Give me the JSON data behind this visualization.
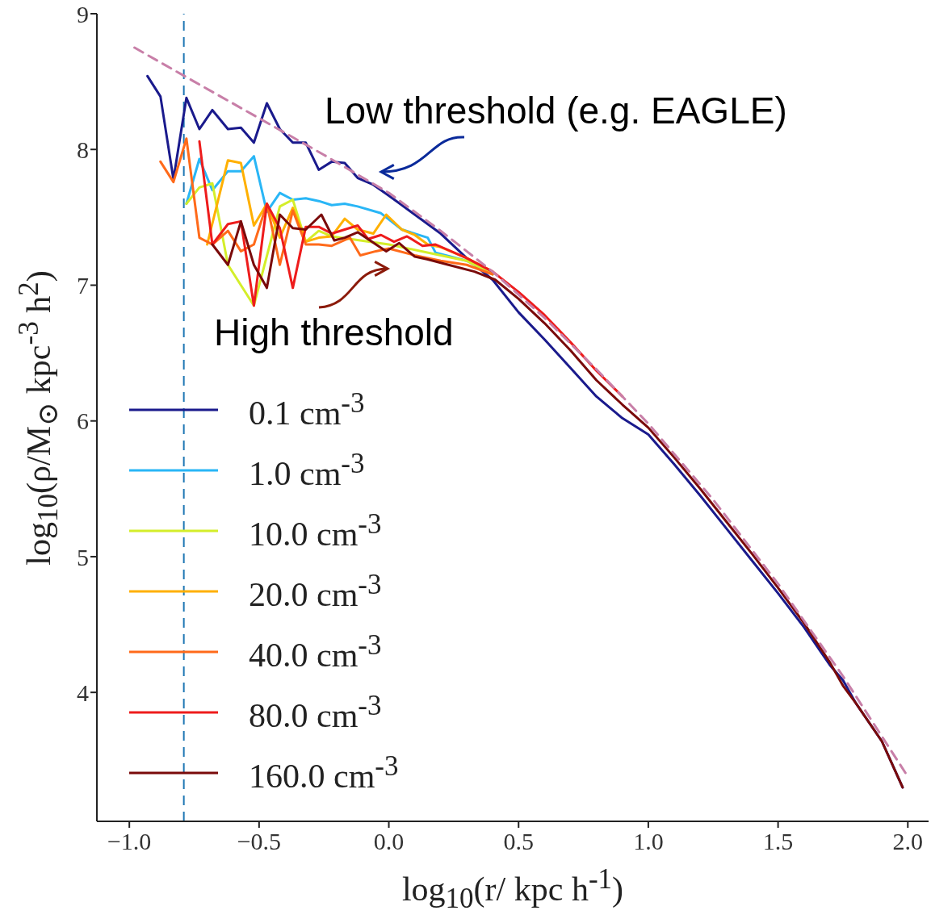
{
  "chart_data": {
    "type": "line",
    "xlabel": "log$_{10}$(r/ kpc h$^{-1}$)",
    "ylabel": "log$_{10}$(ρ/M$_{⊙}$ kpc$^{-3}$ h$^{2}$)",
    "xlim": [
      -1.125,
      2.08
    ],
    "ylim": [
      3.05,
      9
    ],
    "xticks": [
      {
        "value": -1,
        "label": "−1.0"
      },
      {
        "value": -0.5,
        "label": "−0.5"
      },
      {
        "value": 0,
        "label": "0.0"
      },
      {
        "value": 0.5,
        "label": "0.5"
      },
      {
        "value": 1,
        "label": "1.0"
      },
      {
        "value": 1.5,
        "label": "1.5"
      },
      {
        "value": 2,
        "label": "2.0"
      }
    ],
    "yticks": [
      4,
      5,
      6,
      7,
      8,
      9
    ],
    "grid": false,
    "legend": "bottom left",
    "line_style": "solid",
    "ref_lines": [
      {
        "axis": "x",
        "value": -0.79,
        "color": "#1f77b4",
        "line_style": "dashed"
      }
    ],
    "annotations": [
      "Low threshold (e.g. EAGLE)",
      "High threshold"
    ],
    "series": [
      {
        "name": "0.1 cm$^{-3}$",
        "color": "#1a1a8c",
        "x": [
          -0.93,
          -0.88,
          -0.83,
          -0.78,
          -0.73,
          -0.68,
          -0.62,
          -0.57,
          -0.52,
          -0.47,
          -0.42,
          -0.37,
          -0.32,
          -0.27,
          -0.22,
          -0.17,
          -0.12,
          -0.06,
          0.0,
          0.1,
          0.2,
          0.3,
          0.4,
          0.5,
          0.6,
          0.7,
          0.8,
          0.9,
          1.0,
          1.1,
          1.2,
          1.3,
          1.4,
          1.5,
          1.6,
          1.7,
          1.75,
          1.8,
          1.9,
          1.98
        ],
        "values": [
          8.54,
          8.39,
          7.78,
          8.38,
          8.15,
          8.29,
          8.15,
          8.16,
          8.05,
          8.34,
          8.15,
          8.05,
          8.05,
          7.85,
          7.91,
          7.9,
          7.79,
          7.74,
          7.66,
          7.52,
          7.38,
          7.2,
          7.04,
          6.8,
          6.6,
          6.39,
          6.18,
          6.02,
          5.9,
          5.68,
          5.45,
          5.21,
          4.97,
          4.73,
          4.48,
          4.2,
          4.09,
          3.92,
          3.64,
          3.3
        ]
      },
      {
        "name": "1.0 cm$^{-3}$",
        "color": "#29b6f6",
        "x": [
          -0.78,
          -0.73,
          -0.68,
          -0.62,
          -0.57,
          -0.52,
          -0.47,
          -0.42,
          -0.37,
          -0.32,
          -0.27,
          -0.22,
          -0.17,
          -0.12,
          -0.03,
          0.05,
          0.15,
          0.18,
          0.3,
          0.4
        ],
        "values": [
          7.6,
          7.93,
          7.7,
          7.84,
          7.84,
          7.95,
          7.54,
          7.68,
          7.63,
          7.64,
          7.62,
          7.59,
          7.6,
          7.58,
          7.53,
          7.41,
          7.35,
          7.24,
          7.18,
          7.08
        ]
      },
      {
        "name": "10.0 cm$^{-3}$",
        "color": "#d4ee2a",
        "x": [
          -0.78,
          -0.73,
          -0.68,
          -0.62,
          -0.52,
          -0.42,
          -0.37,
          -0.32,
          -0.27,
          -0.22,
          0.0,
          0.2,
          0.3,
          0.4
        ],
        "values": [
          7.6,
          7.72,
          7.75,
          7.15,
          6.85,
          7.58,
          7.63,
          7.32,
          7.4,
          7.36,
          7.3,
          7.22,
          7.18,
          7.08
        ]
      },
      {
        "name": "20.0 cm$^{-3}$",
        "color": "#ffb000",
        "x": [
          -0.7,
          -0.62,
          -0.57,
          -0.52,
          -0.47,
          -0.42,
          -0.37,
          -0.32,
          -0.27,
          -0.22,
          -0.17,
          -0.12,
          -0.06,
          -0.01,
          0.05,
          0.1,
          0.15,
          0.2,
          0.3,
          0.4
        ],
        "values": [
          7.3,
          7.92,
          7.9,
          7.44,
          7.6,
          7.35,
          7.57,
          7.32,
          7.35,
          7.36,
          7.49,
          7.41,
          7.38,
          7.52,
          7.41,
          7.37,
          7.3,
          7.28,
          7.2,
          7.1
        ]
      },
      {
        "name": "40.0 cm$^{-3}$",
        "color": "#ff6a1a",
        "x": [
          -0.88,
          -0.83,
          -0.78,
          -0.73,
          -0.68,
          -0.62,
          -0.57,
          -0.52,
          -0.47,
          -0.42,
          -0.37,
          -0.32,
          -0.27,
          -0.22,
          -0.15,
          -0.11,
          -0.05,
          0.0,
          0.1,
          0.2,
          0.3,
          0.4
        ],
        "values": [
          7.91,
          7.76,
          8.08,
          7.35,
          7.3,
          7.4,
          7.25,
          7.3,
          7.6,
          7.15,
          7.55,
          7.3,
          7.3,
          7.29,
          7.35,
          7.22,
          7.25,
          7.27,
          7.22,
          7.18,
          7.15,
          7.08
        ]
      },
      {
        "name": "80.0 cm$^{-3}$",
        "color": "#ee1c1c",
        "x": [
          -0.73,
          -0.68,
          -0.62,
          -0.57,
          -0.52,
          -0.47,
          -0.42,
          -0.37,
          -0.32,
          -0.27,
          -0.22,
          -0.12,
          -0.08,
          -0.03,
          0.02,
          0.07,
          0.13,
          0.18,
          0.3,
          0.4,
          0.5,
          0.6,
          0.7,
          0.8,
          0.9
        ],
        "values": [
          8.06,
          7.3,
          7.45,
          7.47,
          6.85,
          7.6,
          7.42,
          6.98,
          7.43,
          7.43,
          7.38,
          7.44,
          7.34,
          7.37,
          7.32,
          7.36,
          7.29,
          7.3,
          7.2,
          7.1,
          6.95,
          6.78,
          6.58,
          6.37,
          6.18
        ]
      },
      {
        "name": "160.0 cm$^{-3}$",
        "color": "#7a0a0a",
        "x": [
          -0.68,
          -0.62,
          -0.57,
          -0.52,
          -0.47,
          -0.42,
          -0.37,
          -0.32,
          -0.26,
          -0.21,
          -0.17,
          -0.12,
          -0.01,
          0.04,
          0.1,
          0.15,
          0.23,
          0.33,
          0.41,
          0.5,
          0.6,
          0.7,
          0.8,
          0.9,
          1.0,
          1.1,
          1.2,
          1.3,
          1.4,
          1.5,
          1.6,
          1.7,
          1.75,
          1.8,
          1.9,
          1.98
        ],
        "values": [
          7.3,
          7.15,
          7.47,
          7.15,
          6.98,
          7.52,
          7.42,
          7.41,
          7.52,
          7.33,
          7.35,
          7.39,
          7.25,
          7.31,
          7.21,
          7.19,
          7.15,
          7.1,
          7.04,
          6.9,
          6.72,
          6.52,
          6.3,
          6.12,
          5.95,
          5.73,
          5.5,
          5.26,
          5.02,
          4.77,
          4.51,
          4.22,
          4.05,
          3.92,
          3.64,
          3.3
        ]
      },
      {
        "color": "#c87fa8",
        "line_style": "dashed",
        "x": [
          -0.98,
          -0.75,
          -0.5,
          -0.25,
          0,
          0.2,
          0.4,
          0.6,
          0.8,
          1.0,
          1.25,
          1.5,
          1.75,
          2.0
        ],
        "values": [
          8.75,
          8.5,
          8.23,
          7.96,
          7.68,
          7.4,
          7.1,
          6.76,
          6.38,
          5.98,
          5.42,
          4.8,
          4.12,
          3.38
        ]
      }
    ]
  }
}
